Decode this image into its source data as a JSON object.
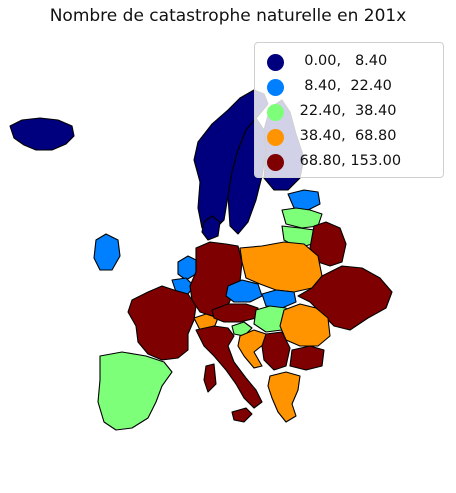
{
  "title": "Nombre de catastrophe naturelle en 201x",
  "legend": {
    "placement": "upper-right",
    "items": [
      {
        "label": "  0.00,   8.40",
        "color": "#00007f"
      },
      {
        "label": "  8.40,  22.40",
        "color": "#0080ff"
      },
      {
        "label": " 22.40,  38.40",
        "color": "#7dff7a"
      },
      {
        "label": " 38.40,  68.80",
        "color": "#ff9400"
      },
      {
        "label": " 68.80, 153.00",
        "color": "#7f0000"
      }
    ]
  },
  "regions": [
    {
      "name": "Iceland",
      "class": 0
    },
    {
      "name": "Norway",
      "class": 0
    },
    {
      "name": "Sweden",
      "class": 0
    },
    {
      "name": "Finland",
      "class": 0
    },
    {
      "name": "Denmark",
      "class": 0
    },
    {
      "name": "Estonia",
      "class": 1
    },
    {
      "name": "Latvia",
      "class": 2
    },
    {
      "name": "Lithuania",
      "class": 2
    },
    {
      "name": "Ireland",
      "class": 1
    },
    {
      "name": "Netherlands",
      "class": 1
    },
    {
      "name": "Belgium",
      "class": 1
    },
    {
      "name": "Czechia",
      "class": 1
    },
    {
      "name": "Slovakia",
      "class": 1
    },
    {
      "name": "Spain",
      "class": 2
    },
    {
      "name": "Hungary",
      "class": 2
    },
    {
      "name": "Slovenia",
      "class": 2
    },
    {
      "name": "Poland",
      "class": 3
    },
    {
      "name": "Romania",
      "class": 3
    },
    {
      "name": "Croatia",
      "class": 3
    },
    {
      "name": "Greece",
      "class": 3
    },
    {
      "name": "Switzerland",
      "class": 3
    },
    {
      "name": "France",
      "class": 4
    },
    {
      "name": "Germany",
      "class": 4
    },
    {
      "name": "Italy",
      "class": 4
    },
    {
      "name": "Austria",
      "class": 4
    },
    {
      "name": "Belarus",
      "class": 4
    },
    {
      "name": "Ukraine",
      "class": 4
    },
    {
      "name": "Serbia",
      "class": 4
    },
    {
      "name": "Bulgaria",
      "class": 4
    }
  ]
}
